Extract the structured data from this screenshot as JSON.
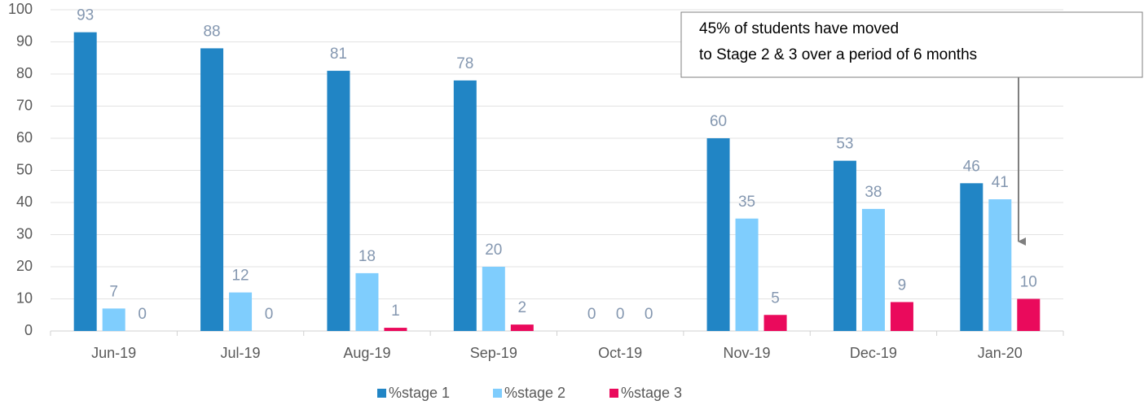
{
  "chart_data": {
    "type": "bar",
    "categories": [
      "Jun-19",
      "Jul-19",
      "Aug-19",
      "Sep-19",
      "Oct-19",
      "Nov-19",
      "Dec-19",
      "Jan-20"
    ],
    "series": [
      {
        "name": "%stage 1",
        "color": "#2185c5",
        "values": [
          93,
          88,
          81,
          78,
          0,
          60,
          53,
          46
        ]
      },
      {
        "name": "%stage 2",
        "color": "#7fcdfd",
        "values": [
          7,
          12,
          18,
          20,
          0,
          35,
          38,
          41
        ]
      },
      {
        "name": "%stage 3",
        "color": "#ea0a5c",
        "values": [
          0,
          0,
          1,
          2,
          0,
          5,
          9,
          10
        ]
      }
    ],
    "ylim": [
      0,
      100
    ],
    "yticks": [
      0,
      10,
      20,
      30,
      40,
      50,
      60,
      70,
      80,
      90,
      100
    ],
    "grid": true,
    "legend": "bottom",
    "annotation": [
      "45% of students have moved",
      "to Stage 2 & 3 over a period of 6 months"
    ]
  }
}
